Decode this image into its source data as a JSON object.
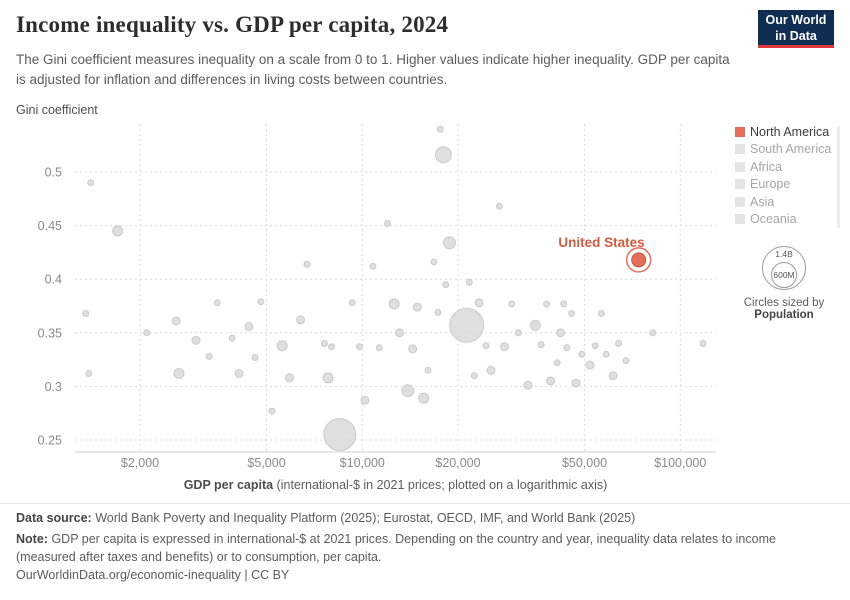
{
  "header": {
    "title": "Income inequality vs. GDP per capita, 2024",
    "subtitle": "The Gini coefficient measures inequality on a scale from 0 to 1. Higher values indicate higher inequality. GDP per capita is adjusted for inflation and differences in living costs between countries.",
    "logo": {
      "line1": "Our World",
      "line2": "in Data"
    }
  },
  "colors": {
    "accent": "#e56e5a",
    "highlight_label": "#d15b41",
    "point_fill": "#d9d9d9",
    "point_stroke": "#c2c2c2",
    "legend_active_text": "#3d3d3d",
    "legend_muted_text": "#a6a6a6",
    "logo_bg": "#102d52",
    "logo_accent": "#e0373f",
    "grid": "#dcdcdc",
    "tick_text": "#8a8a8a"
  },
  "legend": {
    "items": [
      {
        "label": "North America",
        "swatch": "#e56e5a",
        "active": true
      },
      {
        "label": "South America",
        "swatch": "#e4e4e4",
        "active": false
      },
      {
        "label": "Africa",
        "swatch": "#e4e4e4",
        "active": false
      },
      {
        "label": "Europe",
        "swatch": "#e4e4e4",
        "active": false
      },
      {
        "label": "Asia",
        "swatch": "#e4e4e4",
        "active": false
      },
      {
        "label": "Oceania",
        "swatch": "#e4e4e4",
        "active": false
      }
    ],
    "size_legend": {
      "outer_label": "1.4B",
      "inner_label": "600M",
      "caption_line1": "Circles sized by",
      "caption_line2": "Population"
    }
  },
  "chart_data": {
    "type": "scatter",
    "title": "Income inequality vs. GDP per capita, 2024",
    "xlabel_bold": "GDP per capita",
    "xlabel_rest": " (international-$ in 2021 prices; plotted on a logarithmic axis)",
    "ylabel": "Gini coefficient",
    "x_scale": "log",
    "xlim": [
      1200,
      130000
    ],
    "ylim": [
      0.235,
      0.56
    ],
    "grid": true,
    "legend_position": "right",
    "x_ticks": [
      {
        "v": 2000,
        "label": "$2,000"
      },
      {
        "v": 5000,
        "label": "$5,000"
      },
      {
        "v": 10000,
        "label": "$10,000"
      },
      {
        "v": 20000,
        "label": "$20,000"
      },
      {
        "v": 50000,
        "label": "$50,000"
      },
      {
        "v": 100000,
        "label": "$100,000"
      }
    ],
    "y_ticks": [
      {
        "v": 0.25,
        "label": "0.25"
      },
      {
        "v": 0.3,
        "label": "0.3"
      },
      {
        "v": 0.35,
        "label": "0.35"
      },
      {
        "v": 0.4,
        "label": "0.4"
      },
      {
        "v": 0.45,
        "label": "0.45"
      },
      {
        "v": 0.5,
        "label": "0.5"
      }
    ],
    "highlight": {
      "name": "United States",
      "gdp": 74000,
      "gini": 0.418,
      "radius_px": 7
    },
    "points_schema": [
      "gdp_international_dollars",
      "gini",
      "radius_px"
    ],
    "points": [
      [
        1400,
        0.49,
        3
      ],
      [
        1350,
        0.368,
        3
      ],
      [
        1380,
        0.312,
        3
      ],
      [
        1700,
        0.445,
        5
      ],
      [
        2100,
        0.35,
        3
      ],
      [
        2600,
        0.361,
        4
      ],
      [
        2650,
        0.312,
        5
      ],
      [
        3000,
        0.343,
        4
      ],
      [
        3300,
        0.328,
        3
      ],
      [
        3500,
        0.378,
        3
      ],
      [
        3900,
        0.345,
        3
      ],
      [
        4100,
        0.312,
        4
      ],
      [
        4400,
        0.356,
        4
      ],
      [
        4600,
        0.327,
        3
      ],
      [
        4800,
        0.379,
        3
      ],
      [
        5200,
        0.277,
        3
      ],
      [
        5600,
        0.338,
        5
      ],
      [
        5900,
        0.308,
        4
      ],
      [
        6400,
        0.362,
        4
      ],
      [
        6700,
        0.414,
        3
      ],
      [
        7600,
        0.34,
        3
      ],
      [
        7800,
        0.308,
        5
      ],
      [
        8000,
        0.337,
        3
      ],
      [
        8500,
        0.255,
        16
      ],
      [
        9300,
        0.378,
        3
      ],
      [
        9800,
        0.337,
        3
      ],
      [
        10200,
        0.287,
        4
      ],
      [
        10800,
        0.412,
        3
      ],
      [
        11300,
        0.336,
        3
      ],
      [
        12000,
        0.452,
        3
      ],
      [
        12600,
        0.377,
        5
      ],
      [
        13100,
        0.35,
        4
      ],
      [
        13900,
        0.296,
        6
      ],
      [
        14400,
        0.335,
        4
      ],
      [
        14900,
        0.374,
        4
      ],
      [
        15600,
        0.289,
        5
      ],
      [
        16100,
        0.315,
        3
      ],
      [
        16800,
        0.416,
        3
      ],
      [
        17300,
        0.369,
        3
      ],
      [
        17600,
        0.54,
        3
      ],
      [
        18000,
        0.516,
        8
      ],
      [
        18300,
        0.395,
        3
      ],
      [
        18800,
        0.434,
        6
      ],
      [
        21300,
        0.357,
        17
      ],
      [
        21700,
        0.397,
        3
      ],
      [
        22500,
        0.31,
        3
      ],
      [
        23300,
        0.378,
        4
      ],
      [
        24500,
        0.338,
        3
      ],
      [
        25400,
        0.315,
        4
      ],
      [
        27000,
        0.468,
        3
      ],
      [
        28000,
        0.337,
        4
      ],
      [
        29500,
        0.377,
        3
      ],
      [
        31000,
        0.35,
        3
      ],
      [
        33200,
        0.301,
        4
      ],
      [
        35000,
        0.357,
        5
      ],
      [
        36500,
        0.339,
        3
      ],
      [
        38000,
        0.377,
        3
      ],
      [
        39100,
        0.305,
        4
      ],
      [
        41000,
        0.322,
        3
      ],
      [
        42000,
        0.35,
        4
      ],
      [
        43000,
        0.377,
        3
      ],
      [
        44000,
        0.336,
        3
      ],
      [
        45500,
        0.368,
        3
      ],
      [
        47000,
        0.303,
        4
      ],
      [
        49000,
        0.33,
        3
      ],
      [
        52000,
        0.32,
        4
      ],
      [
        54000,
        0.338,
        3
      ],
      [
        56500,
        0.368,
        3
      ],
      [
        58500,
        0.33,
        3
      ],
      [
        61500,
        0.31,
        4
      ],
      [
        64000,
        0.34,
        3
      ],
      [
        67500,
        0.324,
        3
      ],
      [
        82000,
        0.35,
        3
      ],
      [
        118000,
        0.34,
        3
      ]
    ]
  },
  "footer": {
    "data_source_label": "Data source:",
    "data_source": "World Bank Poverty and Inequality Platform (2025); Eurostat, OECD, IMF, and World Bank (2025)",
    "note_label": "Note:",
    "note": "GDP per capita is expressed in international-$ at 2021 prices. Depending on the country and year, inequality data relates to income (measured after taxes and benefits) or to consumption, per capita.",
    "permalink": "OurWorldinData.org/economic-inequality | CC BY"
  }
}
